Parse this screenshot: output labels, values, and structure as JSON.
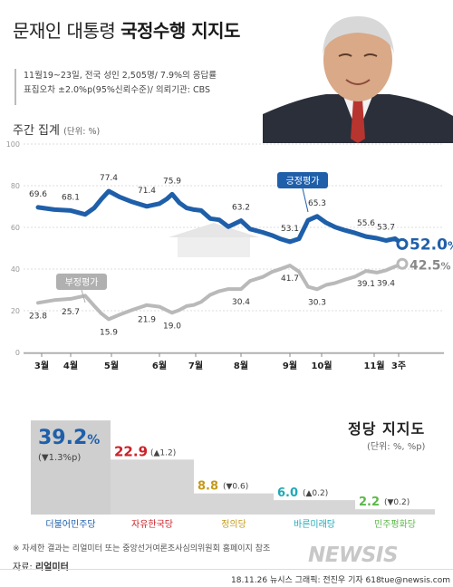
{
  "header": {
    "title_plain": "문재인 대통령 ",
    "title_bold": "국정수행 지지도",
    "survey_line1": "11월19~23일, 전국 성인 2,505명/ 7.9%의 응답률",
    "survey_line2": "표집오차 ±2.0%p(95%신뢰수준)/ 의뢰기관: CBS",
    "weekly_label": "주간 집계",
    "weekly_unit": "(단위: %)"
  },
  "chart_data": [
    {
      "type": "line",
      "title": "주간 집계",
      "unit": "(단위: %)",
      "ylim": [
        0,
        100
      ],
      "yticks": [
        0,
        20,
        40,
        60,
        80,
        100
      ],
      "grid": true,
      "month_labels": [
        "3월",
        "4월",
        "5월",
        "6월",
        "7월",
        "8월",
        "9월",
        "10월",
        "11월",
        "3주"
      ],
      "series": [
        {
          "name": "긍정평가",
          "color": "#1f5faa",
          "labels": [
            "69.6",
            "68.1",
            "77.4",
            "71.4",
            "75.9",
            "63.2",
            "53.1",
            "65.3",
            "55.6",
            "53.7",
            "52.0"
          ],
          "final_label": "52.0%"
        },
        {
          "name": "부정평가",
          "color": "#b9b9b9",
          "labels": [
            "23.8",
            "25.7",
            "15.9",
            "21.9",
            "19.0",
            "30.4",
            "41.7",
            "30.3",
            "39.1",
            "39.4",
            "42.5"
          ],
          "final_label": "42.5%"
        }
      ]
    },
    {
      "type": "bar",
      "title": "정당 지지도",
      "unit": "(단위: %, %p)",
      "categories": [
        "더불어민주당",
        "자유한국당",
        "정의당",
        "바른미래당",
        "민주평화당"
      ],
      "values": [
        39.2,
        22.9,
        8.8,
        6.0,
        2.2
      ],
      "value_labels": [
        "39.2",
        "22.9",
        "8.8",
        "6.0",
        "2.2"
      ],
      "changes": [
        "(▼1.3%p)",
        "(▲1.2)",
        "(▼0.6)",
        "(▲0.2)",
        "(▼0.2)"
      ],
      "colors": [
        "#1f5faa",
        "#cc2229",
        "#c59a1a",
        "#1ea9b6",
        "#5db84a"
      ]
    }
  ],
  "footer": {
    "note": "※ 자세한 결과는 리얼미터 또는 중앙선거여론조사심의위원회 홈페이지 참조",
    "source_label": "자료:",
    "source_name": "리얼미터",
    "credit": "18.11.26  뉴시스 그래픽: 전진우 기자 618tue@newsis.com",
    "logo": "NEWSIS"
  }
}
